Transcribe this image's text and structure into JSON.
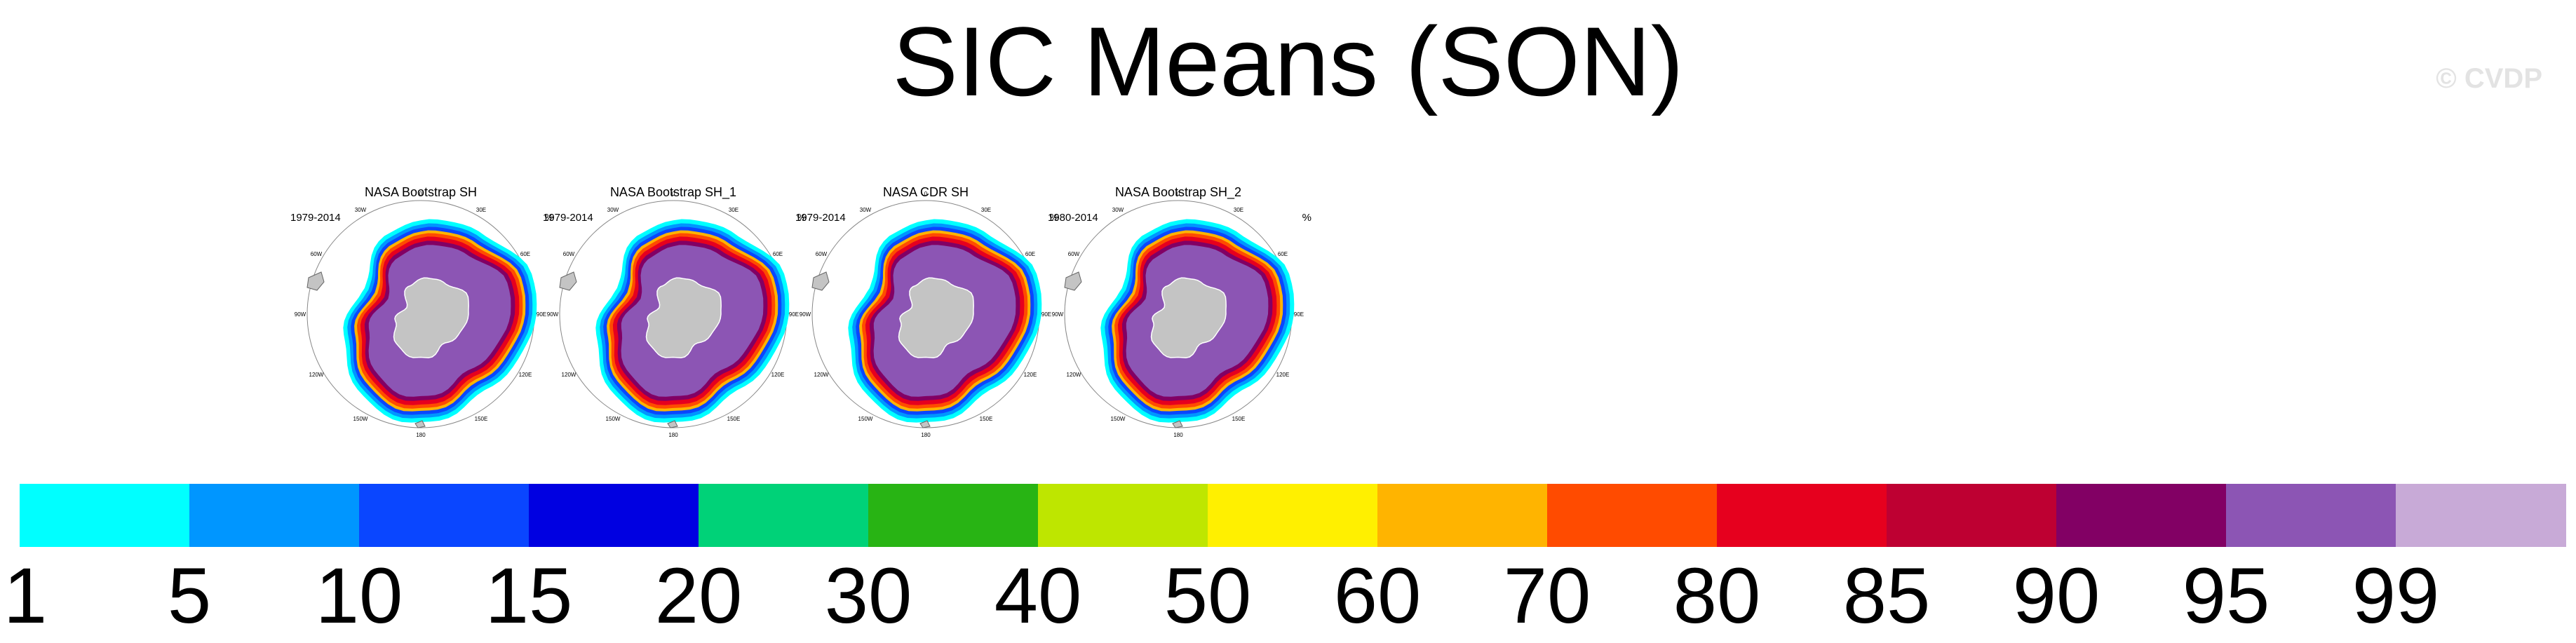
{
  "title": "SIC Means (SON)",
  "copyright": "© CVDP",
  "chart_data": {
    "type": "polar-contour-map",
    "unit": "%",
    "panels": [
      {
        "title": "NASA Bootstrap SH",
        "years": "1979-2014"
      },
      {
        "title": "NASA Bootstrap SH_1",
        "years": "1979-2014"
      },
      {
        "title": "NASA CDR SH",
        "years": "1979-2014"
      },
      {
        "title": "NASA Bootstrap SH_2",
        "years": "1980-2014"
      }
    ],
    "map_longitude_labels": [
      "0",
      "30E",
      "60E",
      "90E",
      "120E",
      "150E",
      "180",
      "150W",
      "120W",
      "90W",
      "60W",
      "30W"
    ],
    "colorbar": {
      "levels": [
        "1",
        "5",
        "10",
        "15",
        "20",
        "30",
        "40",
        "50",
        "60",
        "70",
        "80",
        "85",
        "90",
        "95",
        "99"
      ],
      "colors": [
        "#00ffff",
        "#0096ff",
        "#0a46ff",
        "#0000e1",
        "#00d278",
        "#28b414",
        "#bee600",
        "#fff000",
        "#ffb400",
        "#ff4b00",
        "#e6001e",
        "#be0032",
        "#820064",
        "#8c55b4",
        "#c8aad7"
      ]
    }
  }
}
